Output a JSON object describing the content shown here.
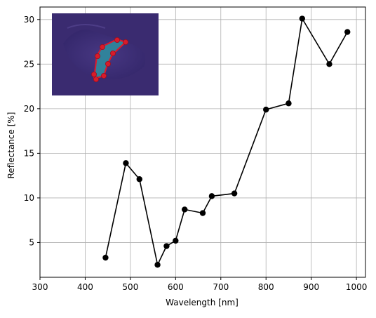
{
  "chart_data": {
    "type": "line",
    "title": "",
    "xlabel": "Wavelength [nm]",
    "ylabel": "Reflectance [%]",
    "xlim": [
      300,
      1020
    ],
    "ylim": [
      1.1,
      31.4
    ],
    "xticks": [
      300,
      400,
      500,
      600,
      700,
      800,
      900,
      1000
    ],
    "yticks": [
      5,
      10,
      15,
      20,
      25,
      30
    ],
    "grid": true,
    "legend": "none",
    "marker": "circle",
    "line_color": "#000000",
    "series": [
      {
        "x": [
          445,
          490,
          520,
          560,
          580,
          600,
          620,
          660,
          680,
          730,
          800,
          850,
          880,
          940,
          980
        ],
        "y": [
          3.3,
          13.9,
          12.1,
          2.5,
          4.6,
          5.2,
          8.7,
          8.3,
          10.2,
          10.5,
          19.9,
          20.6,
          30.1,
          25.0,
          28.6
        ]
      }
    ],
    "inset": {
      "description_colors": {
        "background": "#3b2a6e",
        "region": "#2b8fa0",
        "outline": "#e0182a",
        "points": "#d81b2a"
      }
    }
  }
}
